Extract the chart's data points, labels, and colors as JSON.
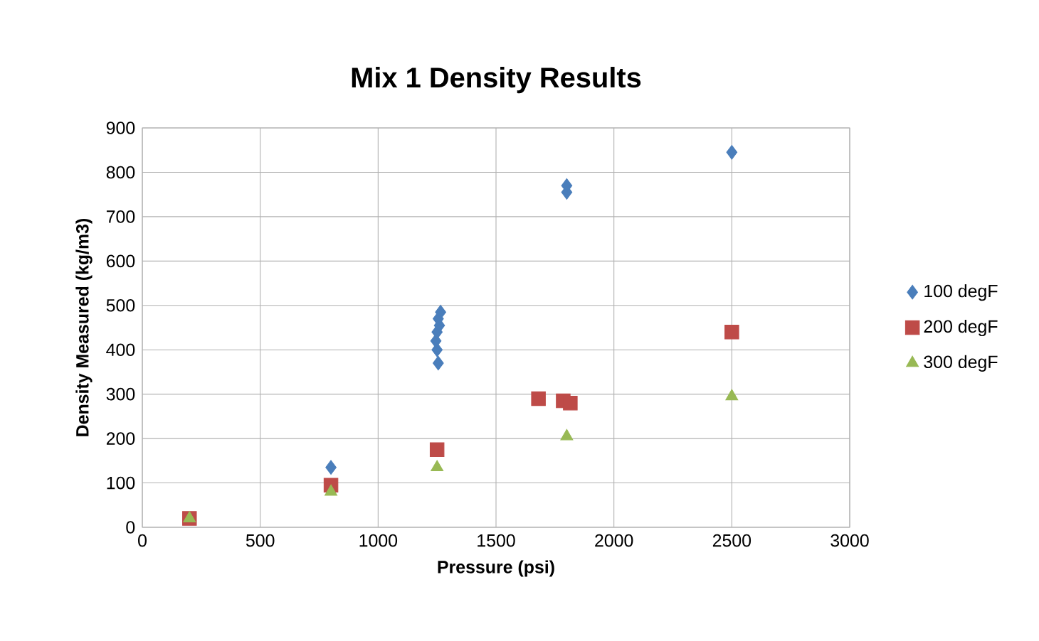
{
  "chart_data": {
    "type": "scatter",
    "title": "Mix 1 Density Results",
    "xlabel": "Pressure (psi)",
    "ylabel": "Density Measured (kg/m3)",
    "xlim": [
      0,
      3000
    ],
    "xticks": [
      0,
      500,
      1000,
      1500,
      2000,
      2500,
      3000
    ],
    "ylim": [
      0,
      900
    ],
    "yticks": [
      0,
      100,
      200,
      300,
      400,
      500,
      600,
      700,
      800,
      900
    ],
    "grid": true,
    "legend": "right",
    "series": [
      {
        "name": "100 degF",
        "color": "#4a7ebb",
        "marker": "diamond",
        "x": [
          800,
          1255,
          1250,
          1245,
          1250,
          1260,
          1255,
          1265,
          1800,
          1800,
          2500
        ],
        "values": [
          135,
          370,
          400,
          420,
          440,
          455,
          470,
          485,
          755,
          770,
          845
        ]
      },
      {
        "name": "200 degF",
        "color": "#be4b48",
        "marker": "square",
        "x": [
          200,
          800,
          1250,
          1680,
          1785,
          1815,
          2500
        ],
        "values": [
          20,
          95,
          175,
          290,
          285,
          280,
          440
        ]
      },
      {
        "name": "300 degF",
        "color": "#98b954",
        "marker": "triangle",
        "x": [
          200,
          800,
          1250,
          1800,
          2500
        ],
        "values": [
          20,
          80,
          135,
          205,
          295
        ]
      }
    ]
  }
}
